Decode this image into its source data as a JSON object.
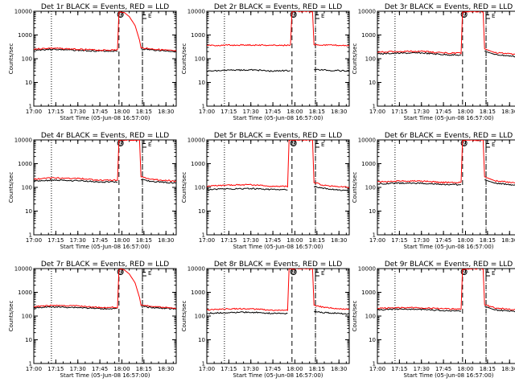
{
  "chart_data": [
    {
      "type": "line",
      "title": "Det 1r BLACK = Events, RED = LLD",
      "xlabel": "Start Time (05-Jun-08 16:57:00)",
      "ylabel": "Counts/sec",
      "xticks": [
        "17:00",
        "17:15",
        "17:30",
        "17:45",
        "18:00",
        "18:15",
        "18:30"
      ],
      "yticks": [
        "1",
        "10",
        "100",
        "1000",
        "10000"
      ],
      "ylim": [
        1,
        10000
      ],
      "yscale": "log",
      "xlim": [
        "17:00",
        "18:37"
      ],
      "markers": {
        "S": "17:59",
        "E": "18:14",
        "dotted": [
          "17:12",
          "18:14"
        ],
        "dashed": [
          "17:58",
          "18:14"
        ]
      },
      "series": [
        {
          "color": "#000000",
          "x": [
            "17:00",
            "17:12",
            "17:30",
            "17:45",
            "17:57",
            "17:57",
            "18:00",
            "18:06",
            "18:11",
            "18:13",
            "18:13",
            "18:20",
            "18:37"
          ],
          "y": [
            230,
            250,
            225,
            210,
            210,
            null,
            null,
            null,
            null,
            null,
            260,
            235,
            200
          ]
        },
        {
          "color": "#ff0000",
          "x": [
            "17:00",
            "17:12",
            "17:30",
            "17:45",
            "17:57",
            "17:58",
            "18:01",
            "18:05",
            "18:09",
            "18:12",
            "18:13",
            "18:20",
            "18:37"
          ],
          "y": [
            255,
            280,
            250,
            230,
            235,
            9000,
            9500,
            6000,
            2500,
            600,
            290,
            260,
            210
          ]
        }
      ]
    },
    {
      "type": "line",
      "title": "Det 2r BLACK = Events, RED = LLD",
      "xlabel": "Start Time (05-Jun-08 16:57:00)",
      "ylabel": "Counts/sec",
      "xticks": [
        "17:00",
        "17:15",
        "17:30",
        "17:45",
        "18:00",
        "18:15",
        "18:30"
      ],
      "yticks": [
        "1",
        "10",
        "100",
        "1000",
        "10000"
      ],
      "ylim": [
        1,
        10000
      ],
      "yscale": "log",
      "xlim": [
        "17:00",
        "18:37"
      ],
      "markers": {
        "S": "17:59",
        "E": "18:14",
        "dotted": [
          "17:12",
          "18:14"
        ],
        "dashed": [
          "17:58",
          "18:14"
        ]
      },
      "series": [
        {
          "color": "#000000",
          "x": [
            "17:00",
            "17:12",
            "17:30",
            "17:45",
            "17:57",
            "17:57",
            "18:13",
            "18:13",
            "18:37"
          ],
          "y": [
            30,
            32,
            34,
            30,
            32,
            null,
            null,
            35,
            30
          ]
        },
        {
          "color": "#ff0000",
          "x": [
            "17:00",
            "17:12",
            "17:30",
            "17:45",
            "17:57",
            "17:58",
            "18:01",
            "18:09",
            "18:12",
            "18:13",
            "18:20",
            "18:37"
          ],
          "y": [
            360,
            370,
            380,
            370,
            370,
            9500,
            9800,
            9800,
            9800,
            390,
            380,
            360
          ]
        }
      ]
    },
    {
      "type": "line",
      "title": "Det 3r BLACK = Events, RED = LLD",
      "xlabel": "Start Time (05-Jun-08 16:57:00)",
      "ylabel": "Counts/sec",
      "xticks": [
        "17:00",
        "17:15",
        "17:30",
        "17:45",
        "18:00",
        "18:15",
        "18:30"
      ],
      "yticks": [
        "1",
        "10",
        "100",
        "1000",
        "10000"
      ],
      "ylim": [
        1,
        10000
      ],
      "yscale": "log",
      "xlim": [
        "17:00",
        "18:37"
      ],
      "markers": {
        "S": "17:59",
        "E": "18:14",
        "dotted": [
          "17:12",
          "18:14"
        ],
        "dashed": [
          "17:58",
          "18:14"
        ]
      },
      "series": [
        {
          "color": "#000000",
          "x": [
            "17:00",
            "17:12",
            "17:30",
            "17:45",
            "17:57",
            "17:57",
            "18:13",
            "18:13",
            "18:20",
            "18:37"
          ],
          "y": [
            160,
            170,
            175,
            150,
            140,
            null,
            null,
            210,
            150,
            120
          ]
        },
        {
          "color": "#ff0000",
          "x": [
            "17:00",
            "17:12",
            "17:30",
            "17:45",
            "17:57",
            "17:58",
            "18:01",
            "18:09",
            "18:12",
            "18:13",
            "18:20",
            "18:37"
          ],
          "y": [
            190,
            200,
            205,
            175,
            170,
            9500,
            9800,
            9800,
            9800,
            260,
            180,
            150
          ]
        }
      ]
    },
    {
      "type": "line",
      "title": "Det 4r BLACK = Events, RED = LLD",
      "xlabel": "Start Time (05-Jun-08 16:57:00)",
      "ylabel": "Counts/sec",
      "xticks": [
        "17:00",
        "17:15",
        "17:30",
        "17:45",
        "18:00",
        "18:15",
        "18:30"
      ],
      "yticks": [
        "1",
        "10",
        "100",
        "1000",
        "10000"
      ],
      "ylim": [
        1,
        10000
      ],
      "yscale": "log",
      "xlim": [
        "17:00",
        "18:37"
      ],
      "markers": {
        "S": "17:59",
        "E": "18:14",
        "dotted": [
          "17:12",
          "18:14"
        ],
        "dashed": [
          "17:58",
          "18:14"
        ]
      },
      "series": [
        {
          "color": "#000000",
          "x": [
            "17:00",
            "17:12",
            "17:30",
            "17:45",
            "17:57",
            "17:57",
            "18:13",
            "18:13",
            "18:20",
            "18:37"
          ],
          "y": [
            180,
            200,
            190,
            170,
            170,
            null,
            null,
            210,
            180,
            150
          ]
        },
        {
          "color": "#ff0000",
          "x": [
            "17:00",
            "17:12",
            "17:30",
            "17:45",
            "17:57",
            "17:58",
            "18:01",
            "18:09",
            "18:12",
            "18:13",
            "18:20",
            "18:37"
          ],
          "y": [
            220,
            250,
            240,
            200,
            200,
            9500,
            9800,
            9800,
            9800,
            280,
            220,
            180
          ]
        }
      ]
    },
    {
      "type": "line",
      "title": "Det 5r BLACK = Events, RED = LLD",
      "xlabel": "Start Time (05-Jun-08 16:57:00)",
      "ylabel": "Counts/sec",
      "xticks": [
        "17:00",
        "17:15",
        "17:30",
        "17:45",
        "18:00",
        "18:15",
        "18:30"
      ],
      "yticks": [
        "1",
        "10",
        "100",
        "1000",
        "10000"
      ],
      "ylim": [
        1,
        10000
      ],
      "yscale": "log",
      "xlim": [
        "17:00",
        "18:37"
      ],
      "markers": {
        "S": "17:59",
        "E": "18:14",
        "dotted": [
          "17:12",
          "18:14"
        ],
        "dashed": [
          "17:58",
          "18:14"
        ]
      },
      "series": [
        {
          "color": "#000000",
          "x": [
            "17:00",
            "17:12",
            "17:30",
            "17:45",
            "17:55",
            "17:55",
            "18:13",
            "18:13",
            "18:20",
            "18:37"
          ],
          "y": [
            80,
            85,
            90,
            80,
            80,
            null,
            null,
            110,
            90,
            70
          ]
        },
        {
          "color": "#ff0000",
          "x": [
            "17:00",
            "17:12",
            "17:30",
            "17:45",
            "17:55",
            "17:56",
            "18:01",
            "18:09",
            "18:12",
            "18:13",
            "18:20",
            "18:37"
          ],
          "y": [
            110,
            125,
            130,
            110,
            110,
            9500,
            9800,
            9800,
            9800,
            160,
            120,
            100
          ]
        }
      ]
    },
    {
      "type": "line",
      "title": "Det 6r BLACK = Events, RED = LLD",
      "xlabel": "Start Time (05-Jun-08 16:57:00)",
      "ylabel": "Counts/sec",
      "xticks": [
        "17:00",
        "17:15",
        "17:30",
        "17:45",
        "18:00",
        "18:15",
        "18:30"
      ],
      "yticks": [
        "1",
        "10",
        "100",
        "1000",
        "10000"
      ],
      "ylim": [
        1,
        10000
      ],
      "yscale": "log",
      "xlim": [
        "17:00",
        "18:37"
      ],
      "markers": {
        "S": "17:59",
        "E": "18:14",
        "dotted": [
          "17:12",
          "18:14"
        ],
        "dashed": [
          "17:58",
          "18:14"
        ]
      },
      "series": [
        {
          "color": "#000000",
          "x": [
            "17:00",
            "17:12",
            "17:30",
            "17:45",
            "17:57",
            "17:57",
            "18:13",
            "18:13",
            "18:20",
            "18:37"
          ],
          "y": [
            140,
            150,
            150,
            130,
            130,
            null,
            null,
            210,
            150,
            120
          ]
        },
        {
          "color": "#ff0000",
          "x": [
            "17:00",
            "17:12",
            "17:30",
            "17:45",
            "17:57",
            "17:58",
            "18:01",
            "18:09",
            "18:12",
            "18:13",
            "18:20",
            "18:37"
          ],
          "y": [
            170,
            185,
            185,
            160,
            160,
            9500,
            9800,
            9800,
            9800,
            280,
            190,
            150
          ]
        }
      ]
    },
    {
      "type": "line",
      "title": "Det 7r BLACK = Events, RED = LLD",
      "xlabel": "Start Time (05-Jun-08 16:57:00)",
      "ylabel": "Counts/sec",
      "xticks": [
        "17:00",
        "17:15",
        "17:30",
        "17:45",
        "18:00",
        "18:15",
        "18:30"
      ],
      "yticks": [
        "1",
        "10",
        "100",
        "1000",
        "10000"
      ],
      "ylim": [
        1,
        10000
      ],
      "yscale": "log",
      "xlim": [
        "17:00",
        "18:37"
      ],
      "markers": {
        "S": "17:59",
        "E": "18:14",
        "dotted": [
          "17:12",
          "18:14"
        ],
        "dashed": [
          "17:58",
          "18:14"
        ]
      },
      "series": [
        {
          "color": "#000000",
          "x": [
            "17:00",
            "17:12",
            "17:30",
            "17:45",
            "17:57",
            "17:57",
            "18:13",
            "18:13",
            "18:20",
            "18:37"
          ],
          "y": [
            220,
            245,
            230,
            205,
            205,
            null,
            null,
            260,
            230,
            200
          ]
        },
        {
          "color": "#ff0000",
          "x": [
            "17:00",
            "17:12",
            "17:30",
            "17:45",
            "17:57",
            "17:58",
            "18:01",
            "18:05",
            "18:09",
            "18:12",
            "18:13",
            "18:20",
            "18:37"
          ],
          "y": [
            250,
            280,
            265,
            230,
            235,
            9000,
            9500,
            6000,
            2500,
            600,
            290,
            260,
            210
          ]
        }
      ]
    },
    {
      "type": "line",
      "title": "Det 8r BLACK = Events, RED = LLD",
      "xlabel": "Start Time (05-Jun-08 16:57:00)",
      "ylabel": "Counts/sec",
      "xticks": [
        "17:00",
        "17:15",
        "17:30",
        "17:45",
        "18:00",
        "18:15",
        "18:30"
      ],
      "yticks": [
        "1",
        "10",
        "100",
        "1000",
        "10000"
      ],
      "ylim": [
        1,
        10000
      ],
      "yscale": "log",
      "xlim": [
        "17:00",
        "18:37"
      ],
      "markers": {
        "S": "17:59",
        "E": "18:14",
        "dotted": [
          "17:12",
          "18:14"
        ],
        "dashed": [
          "17:58",
          "18:14"
        ]
      },
      "series": [
        {
          "color": "#000000",
          "x": [
            "17:00",
            "17:12",
            "17:30",
            "17:45",
            "17:55",
            "17:55",
            "18:13",
            "18:13",
            "18:20",
            "18:37"
          ],
          "y": [
            130,
            140,
            145,
            130,
            130,
            null,
            null,
            160,
            140,
            120
          ]
        },
        {
          "color": "#ff0000",
          "x": [
            "17:00",
            "17:12",
            "17:30",
            "17:45",
            "17:55",
            "17:56",
            "18:01",
            "18:09",
            "18:12",
            "18:13",
            "18:20",
            "18:37"
          ],
          "y": [
            180,
            200,
            205,
            175,
            175,
            9500,
            9800,
            9800,
            9800,
            290,
            230,
            190
          ]
        }
      ]
    },
    {
      "type": "line",
      "title": "Det 9r BLACK = Events, RED = LLD",
      "xlabel": "Start Time (05-Jun-08 16:57:00)",
      "ylabel": "Counts/sec",
      "xticks": [
        "17:00",
        "17:15",
        "17:30",
        "17:45",
        "18:00",
        "18:15",
        "18:30"
      ],
      "yticks": [
        "1",
        "10",
        "100",
        "1000",
        "10000"
      ],
      "ylim": [
        1,
        10000
      ],
      "yscale": "log",
      "xlim": [
        "17:00",
        "18:37"
      ],
      "markers": {
        "S": "17:59",
        "E": "18:14",
        "dotted": [
          "17:12",
          "18:14"
        ],
        "dashed": [
          "17:58",
          "18:14"
        ]
      },
      "series": [
        {
          "color": "#000000",
          "x": [
            "17:00",
            "17:12",
            "17:30",
            "17:45",
            "17:57",
            "17:57",
            "18:13",
            "18:13",
            "18:20",
            "18:37"
          ],
          "y": [
            180,
            195,
            190,
            170,
            165,
            null,
            null,
            260,
            180,
            150
          ]
        },
        {
          "color": "#ff0000",
          "x": [
            "17:00",
            "17:12",
            "17:30",
            "17:45",
            "17:57",
            "17:58",
            "18:01",
            "18:09",
            "18:12",
            "18:13",
            "18:20",
            "18:37"
          ],
          "y": [
            210,
            225,
            225,
            200,
            195,
            9500,
            9800,
            9800,
            9800,
            300,
            220,
            180
          ]
        }
      ]
    }
  ]
}
